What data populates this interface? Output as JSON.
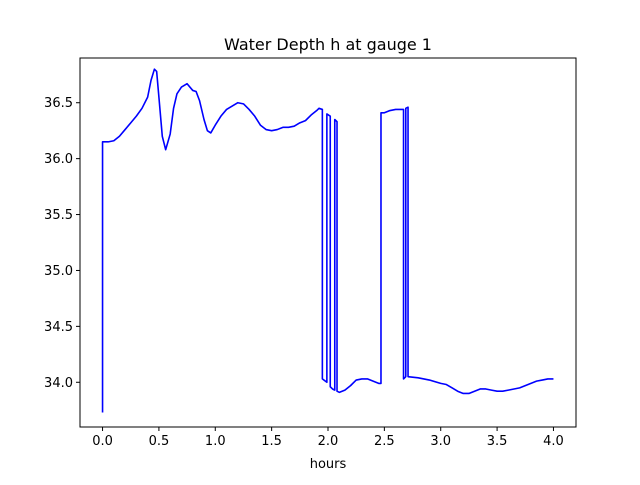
{
  "chart_data": {
    "type": "line",
    "title": "Water Depth h at gauge 1",
    "xlabel": "hours",
    "ylabel": "",
    "xlim": [
      -0.2,
      4.2
    ],
    "ylim": [
      33.6,
      36.9
    ],
    "grid": false,
    "x_ticks": [
      0.0,
      0.5,
      1.0,
      1.5,
      2.0,
      2.5,
      3.0,
      3.5,
      4.0
    ],
    "x_tick_labels": [
      "0.0",
      "0.5",
      "1.0",
      "1.5",
      "2.0",
      "2.5",
      "3.0",
      "3.5",
      "4.0"
    ],
    "y_ticks": [
      34.0,
      34.5,
      35.0,
      35.5,
      36.0,
      36.5
    ],
    "y_tick_labels": [
      "34.0",
      "34.5",
      "35.0",
      "35.5",
      "36.0",
      "36.5"
    ],
    "series": [
      {
        "color": "#0000ff",
        "x": [
          0.0,
          0.0,
          0.05,
          0.1,
          0.15,
          0.2,
          0.25,
          0.3,
          0.35,
          0.4,
          0.43,
          0.46,
          0.48,
          0.5,
          0.53,
          0.56,
          0.6,
          0.63,
          0.66,
          0.7,
          0.75,
          0.8,
          0.83,
          0.86,
          0.9,
          0.93,
          0.96,
          1.0,
          1.05,
          1.1,
          1.15,
          1.2,
          1.25,
          1.3,
          1.35,
          1.4,
          1.45,
          1.5,
          1.55,
          1.6,
          1.65,
          1.7,
          1.75,
          1.8,
          1.85,
          1.9,
          1.92,
          1.95,
          1.95,
          1.99,
          1.99,
          2.02,
          2.02,
          2.04,
          2.06,
          2.06,
          2.08,
          2.08,
          2.1,
          2.15,
          2.2,
          2.25,
          2.3,
          2.35,
          2.4,
          2.45,
          2.47,
          2.47,
          2.5,
          2.55,
          2.6,
          2.65,
          2.67,
          2.67,
          2.69,
          2.69,
          2.71,
          2.71,
          2.8,
          2.9,
          3.0,
          3.05,
          3.1,
          3.15,
          3.2,
          3.25,
          3.3,
          3.35,
          3.4,
          3.45,
          3.5,
          3.55,
          3.6,
          3.65,
          3.7,
          3.75,
          3.8,
          3.85,
          3.9,
          3.95,
          4.0
        ],
        "y": [
          33.73,
          36.15,
          36.15,
          36.16,
          36.2,
          36.26,
          36.32,
          36.38,
          36.45,
          36.55,
          36.7,
          36.8,
          36.78,
          36.55,
          36.2,
          36.08,
          36.22,
          36.45,
          36.58,
          36.64,
          36.67,
          36.61,
          36.6,
          36.52,
          36.35,
          36.25,
          36.23,
          36.3,
          36.38,
          36.44,
          36.47,
          36.5,
          36.49,
          36.44,
          36.38,
          36.3,
          36.26,
          36.25,
          36.26,
          36.28,
          36.28,
          36.29,
          36.32,
          36.34,
          36.39,
          36.43,
          36.45,
          36.44,
          34.03,
          34.0,
          36.4,
          36.38,
          33.96,
          33.94,
          33.93,
          36.35,
          36.33,
          33.92,
          33.91,
          33.93,
          33.97,
          34.02,
          34.03,
          34.03,
          34.01,
          33.99,
          33.99,
          36.41,
          36.41,
          36.43,
          36.44,
          36.44,
          36.44,
          34.03,
          34.05,
          36.45,
          36.46,
          34.05,
          34.04,
          34.02,
          33.99,
          33.98,
          33.95,
          33.92,
          33.9,
          33.9,
          33.92,
          33.94,
          33.94,
          33.93,
          33.92,
          33.92,
          33.93,
          33.94,
          33.95,
          33.97,
          33.99,
          34.01,
          34.02,
          34.03,
          34.03
        ]
      }
    ]
  }
}
